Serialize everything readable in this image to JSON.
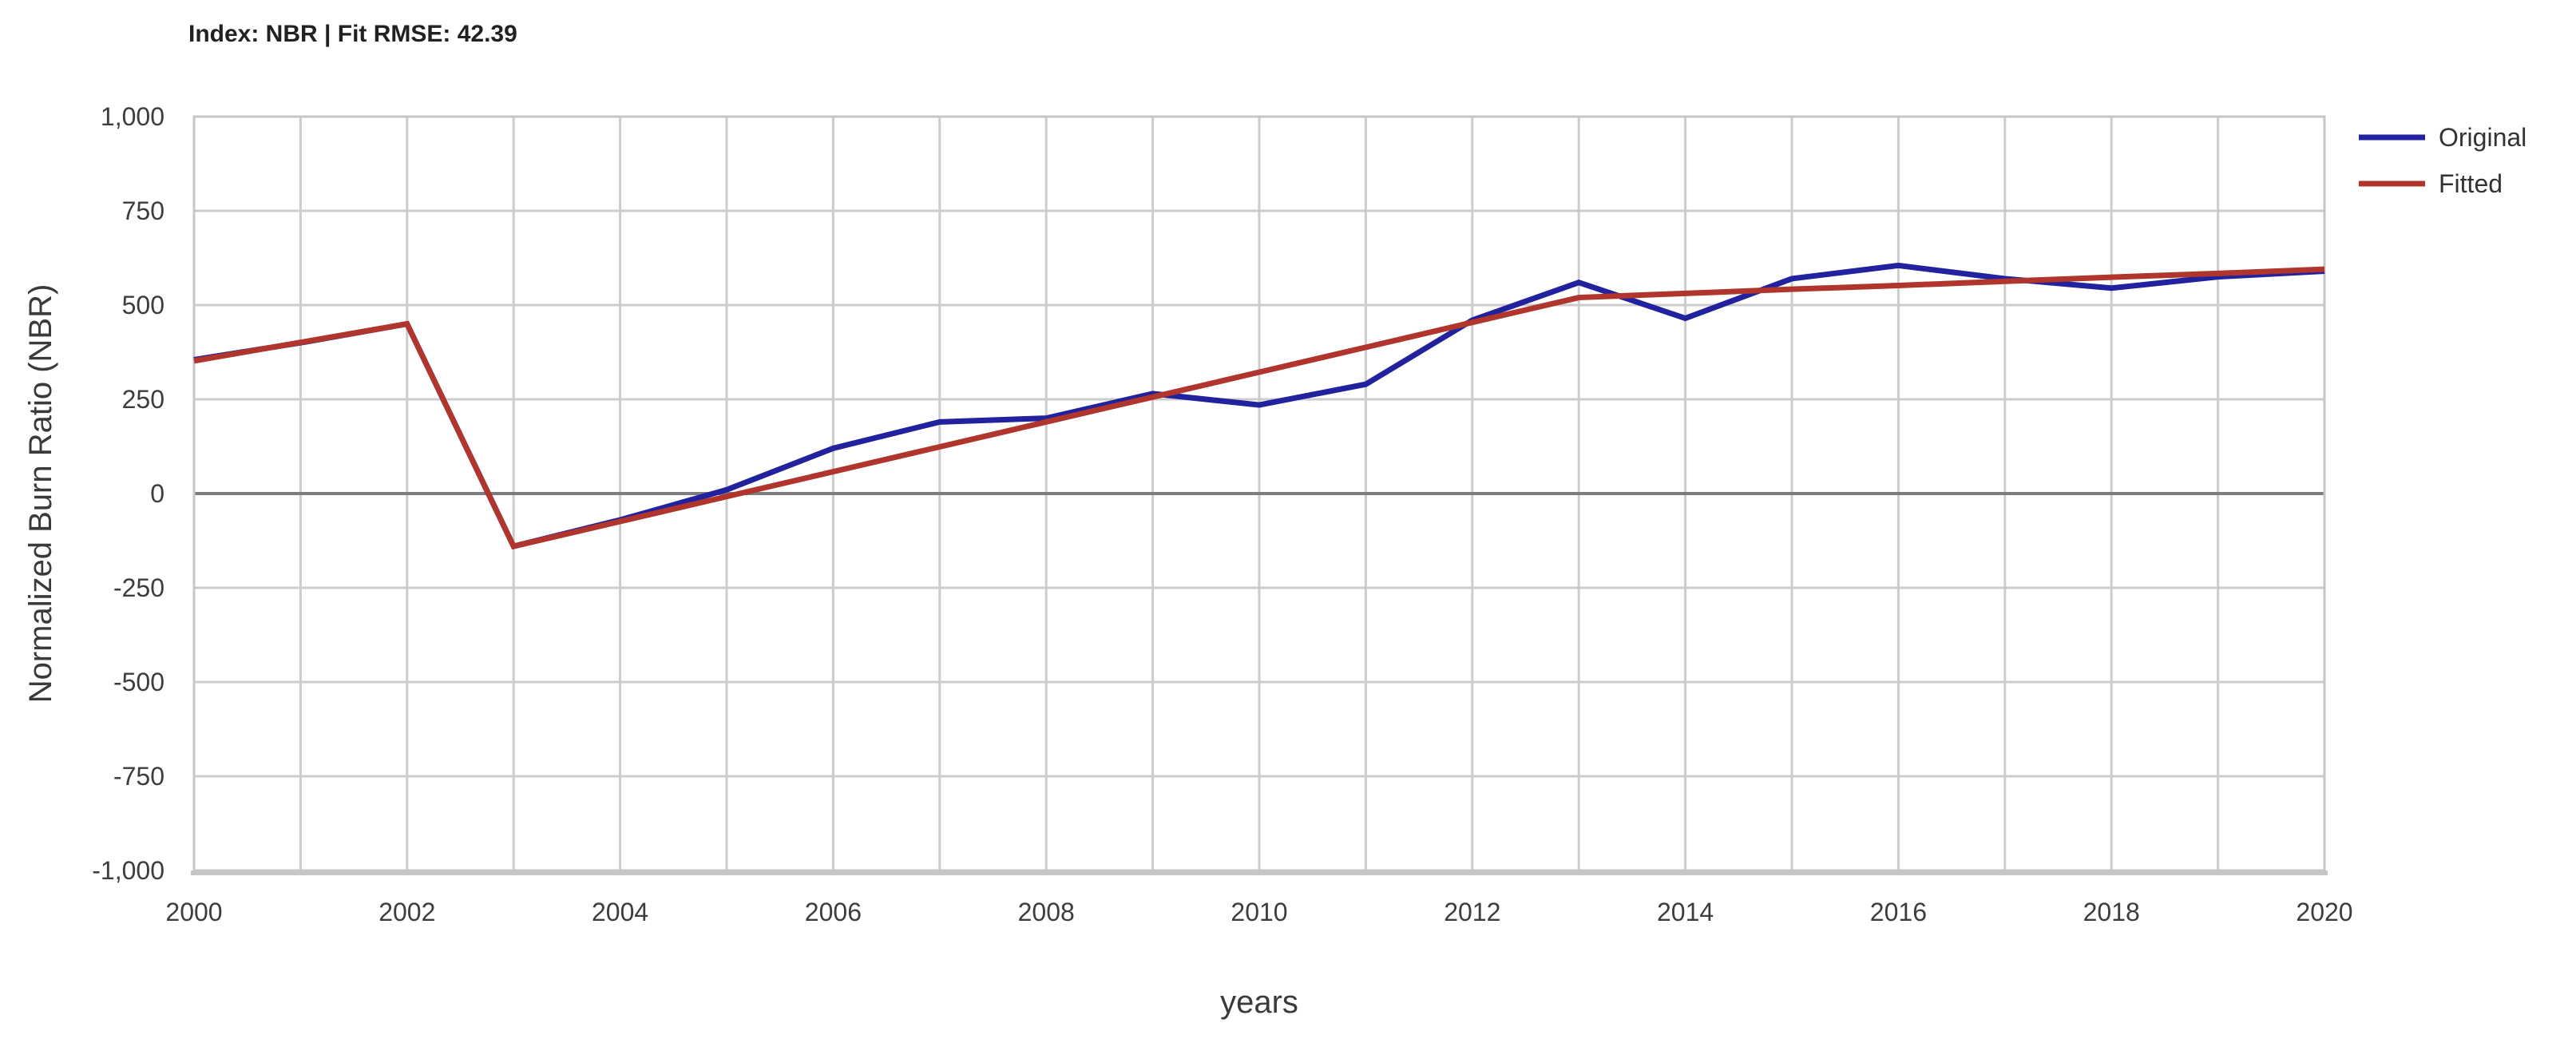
{
  "chart_data": {
    "type": "line",
    "title": "Index: NBR | Fit RMSE: 42.39",
    "xlabel": "years",
    "ylabel": "Normalized Burn Ratio (NBR)",
    "x": [
      2000,
      2001,
      2002,
      2003,
      2004,
      2005,
      2006,
      2007,
      2008,
      2009,
      2010,
      2011,
      2012,
      2013,
      2014,
      2015,
      2016,
      2017,
      2018,
      2019,
      2020
    ],
    "series": [
      {
        "name": "Original",
        "color": "#22229e",
        "values": [
          355,
          400,
          450,
          -140,
          -70,
          10,
          120,
          190,
          200,
          265,
          235,
          290,
          460,
          560,
          465,
          570,
          605,
          570,
          545,
          575,
          590
        ]
      },
      {
        "name": "Fitted",
        "color": "#b0352c",
        "values": [
          352,
          401,
          450,
          -140,
          -74,
          -8,
          58,
          124,
          190,
          256,
          322,
          388,
          454,
          520,
          531,
          542,
          552,
          563,
          574,
          584,
          595
        ]
      }
    ],
    "fitted_segment_vertices": {
      "years": [
        2000,
        2002,
        2003,
        2013,
        2020
      ],
      "values": [
        352,
        450,
        -140,
        520,
        595
      ]
    },
    "xlim": [
      2000,
      2020
    ],
    "ylim": [
      -1000,
      1000
    ],
    "xticks": {
      "values": [
        2000,
        2002,
        2004,
        2006,
        2008,
        2010,
        2012,
        2014,
        2016,
        2018,
        2020
      ],
      "labels": [
        "2000",
        "2002",
        "2004",
        "2006",
        "2008",
        "2010",
        "2012",
        "2014",
        "2016",
        "2018",
        "2020"
      ]
    },
    "yticks": {
      "values": [
        1000,
        750,
        500,
        250,
        0,
        -250,
        -500,
        -750,
        -1000
      ],
      "labels": [
        "1,000",
        "750",
        "500",
        "250",
        "0",
        "-250",
        "-500",
        "-750",
        "-1,000"
      ]
    },
    "grid": true,
    "zero_line": true,
    "legend_position": "top-right",
    "colors": {
      "background": "#ffffff",
      "gridline": "#cccccc",
      "zero_line": "#7d7d7d",
      "frame": "#c6c6c6",
      "title_text": "#212121",
      "tick_text": "#3d3d3d",
      "axis_title_text": "#3a3a3a",
      "legend_text": "#333333"
    }
  }
}
